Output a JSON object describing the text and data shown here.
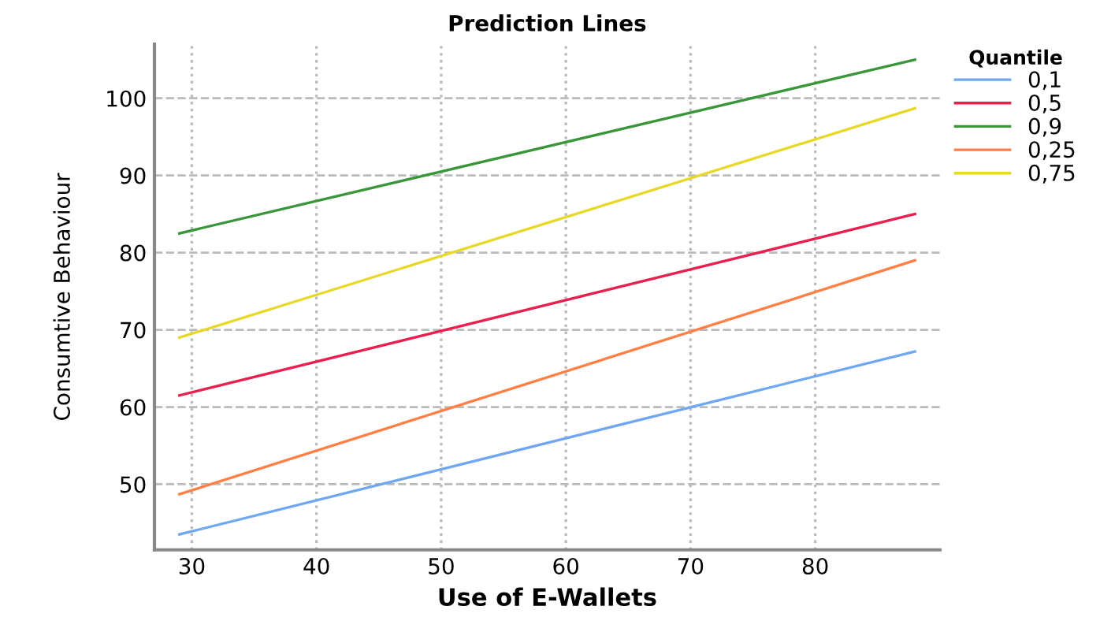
{
  "chart_data": {
    "type": "line",
    "title": "Prediction Lines",
    "xlabel": "Use of E-Wallets",
    "ylabel": "Consumtive Behaviour",
    "legend_title": "Quantile",
    "x": [
      29,
      88
    ],
    "series": [
      {
        "name": "0,1",
        "color": "#6fa8f0",
        "values": [
          43.5,
          67.2
        ]
      },
      {
        "name": "0,5",
        "color": "#e8204e",
        "values": [
          61.5,
          85
        ]
      },
      {
        "name": "0,9",
        "color": "#3a963a",
        "values": [
          82.5,
          105
        ]
      },
      {
        "name": "0,25",
        "color": "#ff7f45",
        "values": [
          48.7,
          79
        ]
      },
      {
        "name": "0,75",
        "color": "#e8d82a",
        "values": [
          69,
          98.7
        ]
      }
    ],
    "xlim": [
      27,
      90
    ],
    "ylim": [
      41.5,
      107
    ],
    "xticks": [
      30,
      40,
      50,
      60,
      70,
      80
    ],
    "yticks": [
      50,
      60,
      70,
      80,
      90,
      100
    ],
    "grid": true,
    "legend": "top right",
    "marker": "none",
    "line_style": "solid"
  }
}
